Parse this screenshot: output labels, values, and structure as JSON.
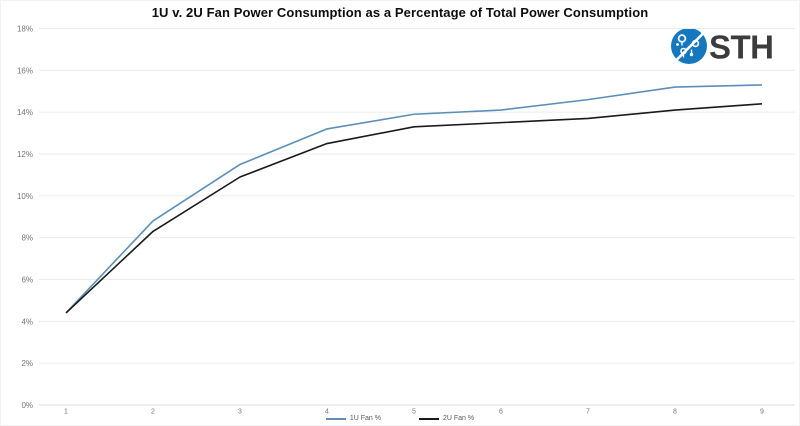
{
  "title": "1U v. 2U Fan Power Consumption as a Percentage of Total Power Consumption",
  "logo": {
    "text": "STH",
    "circle_color": "#1577bd",
    "text_color": "#3c3c3c"
  },
  "legend": [
    {
      "label": "1U Fan %",
      "color": "#5b8fb9"
    },
    {
      "label": "2U Fan %",
      "color": "#1a1a1a"
    }
  ],
  "colors": {
    "background": "#ffffff",
    "gridline": "#ececec",
    "axis_line": "#dcdcdc",
    "axis_text": "#757575"
  },
  "chart_data": {
    "type": "line",
    "title": "1U v. 2U Fan Power Consumption as a Percentage of Total Power Consumption",
    "x": [
      1,
      2,
      3,
      4,
      5,
      6,
      7,
      8,
      9
    ],
    "series": [
      {
        "name": "1U Fan %",
        "color": "#5b8fb9",
        "values": [
          4.4,
          8.8,
          11.5,
          13.2,
          13.9,
          14.1,
          14.6,
          15.2,
          15.3
        ]
      },
      {
        "name": "2U Fan %",
        "color": "#1a1a1a",
        "values": [
          4.4,
          8.3,
          10.9,
          12.5,
          13.3,
          13.5,
          13.7,
          14.1,
          14.4
        ]
      }
    ],
    "xlabel": "",
    "ylabel": "",
    "ylim": [
      0,
      18
    ],
    "ytick_step": 2,
    "ytick_format": "percent",
    "grid": "horizontal",
    "legend_position": "bottom"
  }
}
